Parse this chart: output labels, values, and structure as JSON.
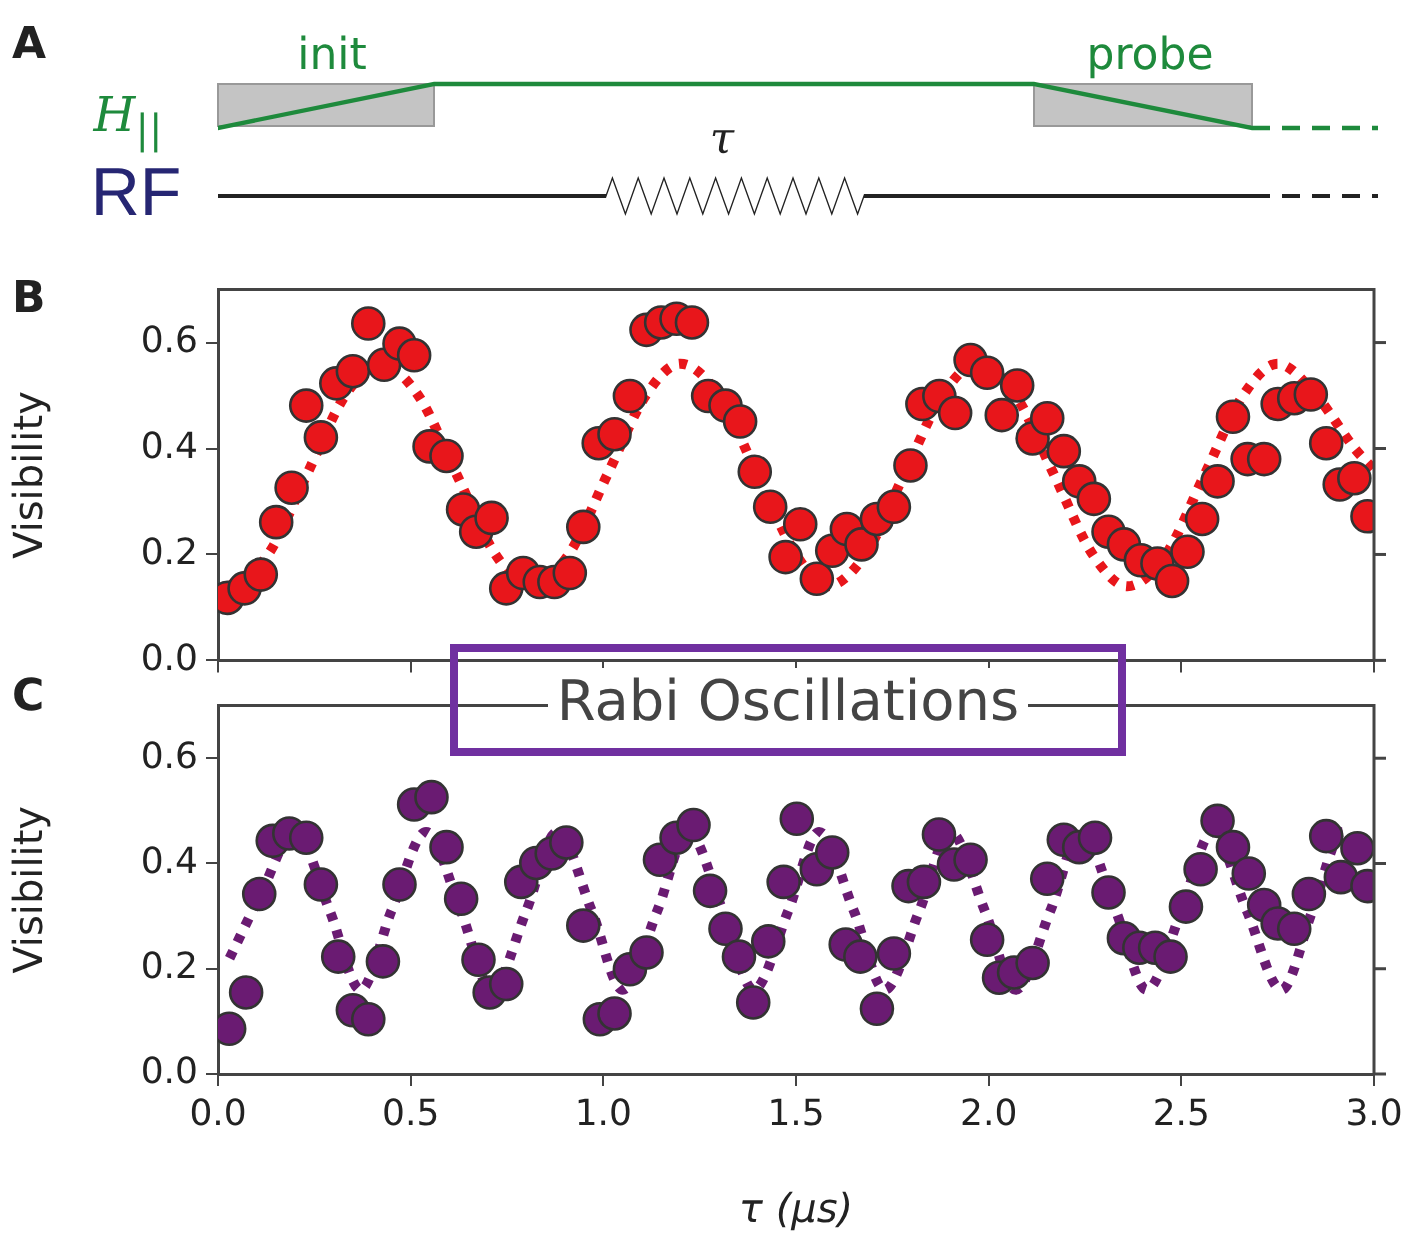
{
  "chart_data": [
    {
      "type": "other",
      "title": "A",
      "annotations": [
        "init",
        "probe",
        "H$_{||}$",
        "RF",
        "τ"
      ]
    },
    {
      "type": "scatter",
      "title": "B",
      "ylabel": "Visibility",
      "xlim": [
        0,
        3
      ],
      "ylim": [
        0,
        0.7
      ],
      "xticks": [
        {
          "value": 0,
          "label": null
        },
        {
          "value": 0.5,
          "label": null
        },
        {
          "value": 1,
          "label": null
        },
        {
          "value": 1.5,
          "label": null
        },
        {
          "value": 2,
          "label": null
        },
        {
          "value": 2.5,
          "label": null
        },
        {
          "value": 3,
          "label": null
        }
      ],
      "yticks": [
        {
          "value": 0,
          "label": "0.0"
        },
        {
          "value": 0.2,
          "label": "0.2"
        },
        {
          "value": 0.4,
          "label": "0.4"
        },
        {
          "value": 0.6,
          "label": "0.6"
        }
      ],
      "tick_labels": "y",
      "grid": false,
      "legend": false,
      "marker": "circle",
      "series": [
        {
          "type": "scatter",
          "color": "#e8161b",
          "x": [
            0.024,
            0.069,
            0.111,
            0.151,
            0.191,
            0.229,
            0.267,
            0.307,
            0.35,
            0.39,
            0.431,
            0.471,
            0.509,
            0.549,
            0.593,
            0.636,
            0.67,
            0.71,
            0.748,
            0.792,
            0.835,
            0.873,
            0.913,
            0.948,
            0.988,
            1.029,
            1.069,
            1.112,
            1.15,
            1.19,
            1.23,
            1.272,
            1.317,
            1.355,
            1.393,
            1.433,
            1.473,
            1.511,
            1.554,
            1.594,
            1.632,
            1.67,
            1.71,
            1.754,
            1.797,
            1.828,
            1.872,
            1.913,
            1.953,
            1.996,
            2.034,
            2.074,
            2.114,
            2.152,
            2.195,
            2.235,
            2.273,
            2.311,
            2.351,
            2.395,
            2.438,
            2.476,
            2.516,
            2.554,
            2.594,
            2.634,
            2.672,
            2.715,
            2.75,
            2.793,
            2.836,
            2.876,
            2.911,
            2.949,
            2.983
          ],
          "values": [
            0.118,
            0.136,
            0.162,
            0.261,
            0.326,
            0.481,
            0.421,
            0.523,
            0.546,
            0.636,
            0.558,
            0.598,
            0.576,
            0.404,
            0.386,
            0.285,
            0.243,
            0.269,
            0.136,
            0.165,
            0.148,
            0.148,
            0.165,
            0.252,
            0.41,
            0.427,
            0.499,
            0.624,
            0.638,
            0.645,
            0.638,
            0.499,
            0.481,
            0.451,
            0.356,
            0.29,
            0.195,
            0.257,
            0.154,
            0.207,
            0.248,
            0.219,
            0.267,
            0.29,
            0.368,
            0.484,
            0.499,
            0.467,
            0.567,
            0.543,
            0.463,
            0.519,
            0.419,
            0.457,
            0.395,
            0.338,
            0.305,
            0.243,
            0.219,
            0.189,
            0.183,
            0.15,
            0.205,
            0.267,
            0.338,
            0.46,
            0.38,
            0.38,
            0.484,
            0.495,
            0.502,
            0.41,
            0.332,
            0.344,
            0.272
          ]
        },
        {
          "type": "line",
          "color": "#e8161b",
          "line_style": "dotted",
          "marker": "none",
          "x": [
            0.03,
            0.13,
            0.23,
            0.33,
            0.42,
            0.52,
            0.62,
            0.72,
            0.81,
            0.91,
            1.01,
            1.11,
            1.2,
            1.3,
            1.4,
            1.5,
            1.58,
            1.68,
            1.78,
            1.88,
            1.97,
            2.07,
            2.17,
            2.27,
            2.36,
            2.46,
            2.56,
            2.66,
            2.75,
            2.85,
            2.95,
            3.0
          ],
          "values": [
            0.14,
            0.2,
            0.35,
            0.5,
            0.56,
            0.5,
            0.35,
            0.2,
            0.14,
            0.2,
            0.35,
            0.5,
            0.56,
            0.5,
            0.35,
            0.2,
            0.14,
            0.2,
            0.35,
            0.5,
            0.56,
            0.5,
            0.35,
            0.2,
            0.14,
            0.2,
            0.35,
            0.5,
            0.56,
            0.5,
            0.4,
            0.36
          ]
        }
      ]
    },
    {
      "type": "scatter",
      "title": "C",
      "ylabel": "Visibility",
      "xlabel": "τ (μs)",
      "xlim": [
        0,
        3
      ],
      "ylim": [
        0,
        0.7
      ],
      "xticks": [
        {
          "value": 0,
          "label": "0.0"
        },
        {
          "value": 0.5,
          "label": "0.5"
        },
        {
          "value": 1,
          "label": "1.0"
        },
        {
          "value": 1.5,
          "label": "1.5"
        },
        {
          "value": 2,
          "label": "2.0"
        },
        {
          "value": 2.5,
          "label": "2.5"
        },
        {
          "value": 3,
          "label": "3.0"
        }
      ],
      "yticks": [
        {
          "value": 0,
          "label": "0.0"
        },
        {
          "value": 0.2,
          "label": "0.2"
        },
        {
          "value": 0.4,
          "label": "0.4"
        },
        {
          "value": 0.6,
          "label": "0.6"
        }
      ],
      "grid": false,
      "legend": false,
      "marker": "circle",
      "annotations": [
        "Rabi Oscillations"
      ],
      "series": [
        {
          "type": "scatter",
          "color": "#6a1b72",
          "x": [
            0.029,
            0.073,
            0.107,
            0.142,
            0.185,
            0.229,
            0.267,
            0.312,
            0.35,
            0.39,
            0.428,
            0.471,
            0.509,
            0.554,
            0.593,
            0.631,
            0.676,
            0.705,
            0.748,
            0.787,
            0.826,
            0.866,
            0.904,
            0.948,
            0.991,
            1.029,
            1.069,
            1.112,
            1.147,
            1.19,
            1.234,
            1.277,
            1.317,
            1.352,
            1.389,
            1.428,
            1.468,
            1.502,
            1.554,
            1.594,
            1.629,
            1.667,
            1.71,
            1.754,
            1.792,
            1.832,
            1.871,
            1.91,
            1.953,
            1.996,
            2.027,
            2.066,
            2.114,
            2.152,
            2.195,
            2.235,
            2.276,
            2.311,
            2.351,
            2.391,
            2.432,
            2.472,
            2.512,
            2.55,
            2.594,
            2.634,
            2.675,
            2.715,
            2.75,
            2.793,
            2.831,
            2.876,
            2.914,
            2.957,
            2.983
          ],
          "values": [
            0.086,
            0.155,
            0.342,
            0.443,
            0.457,
            0.449,
            0.36,
            0.223,
            0.121,
            0.104,
            0.214,
            0.36,
            0.512,
            0.526,
            0.431,
            0.333,
            0.217,
            0.155,
            0.171,
            0.365,
            0.401,
            0.419,
            0.44,
            0.282,
            0.104,
            0.115,
            0.199,
            0.231,
            0.407,
            0.449,
            0.473,
            0.348,
            0.276,
            0.223,
            0.136,
            0.252,
            0.365,
            0.485,
            0.389,
            0.421,
            0.246,
            0.223,
            0.124,
            0.229,
            0.357,
            0.365,
            0.455,
            0.398,
            0.407,
            0.255,
            0.183,
            0.193,
            0.211,
            0.371,
            0.445,
            0.431,
            0.449,
            0.345,
            0.258,
            0.24,
            0.24,
            0.223,
            0.318,
            0.389,
            0.481,
            0.431,
            0.381,
            0.321,
            0.286,
            0.276,
            0.342,
            0.452,
            0.374,
            0.429,
            0.357
          ]
        },
        {
          "type": "line",
          "color": "#6a1b72",
          "line_style": "dotted",
          "marker": "none",
          "x": [
            0.03,
            0.11,
            0.2,
            0.29,
            0.37,
            0.45,
            0.54,
            0.63,
            0.71,
            0.8,
            0.88,
            0.97,
            1.05,
            1.14,
            1.22,
            1.31,
            1.39,
            1.48,
            1.56,
            1.65,
            1.73,
            1.82,
            1.9,
            1.99,
            2.07,
            2.16,
            2.24,
            2.33,
            2.41,
            2.5,
            2.58,
            2.67,
            2.76,
            2.84,
            2.92,
            3.0
          ],
          "values": [
            0.22,
            0.34,
            0.46,
            0.31,
            0.16,
            0.31,
            0.46,
            0.31,
            0.16,
            0.31,
            0.46,
            0.31,
            0.16,
            0.31,
            0.46,
            0.31,
            0.16,
            0.31,
            0.46,
            0.31,
            0.16,
            0.31,
            0.46,
            0.31,
            0.16,
            0.31,
            0.46,
            0.31,
            0.16,
            0.31,
            0.46,
            0.31,
            0.16,
            0.31,
            0.46,
            0.33
          ]
        }
      ]
    }
  ]
}
